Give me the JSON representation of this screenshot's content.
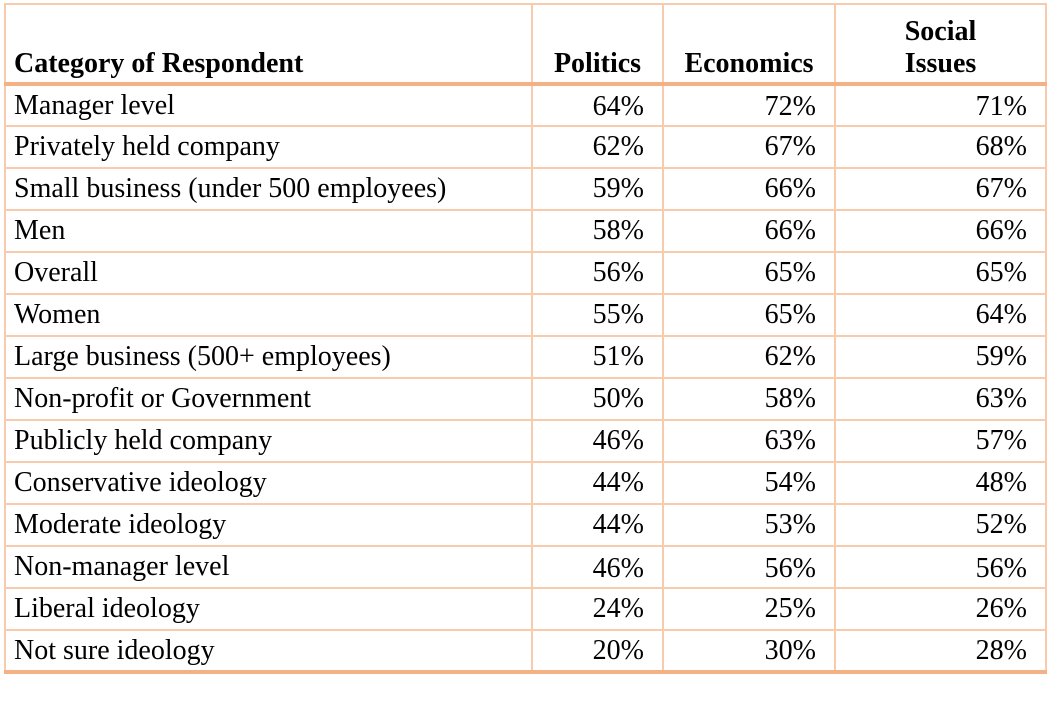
{
  "chart_data": {
    "type": "table",
    "header": {
      "category": "Category of Respondent",
      "politics": "Politics",
      "economics": "Economics",
      "social_issues": "Social\nIssues"
    },
    "rows": [
      {
        "category": "Manager level",
        "politics": "64%",
        "economics": "72%",
        "social_issues": "71%"
      },
      {
        "category": "Privately held company",
        "politics": "62%",
        "economics": "67%",
        "social_issues": "68%"
      },
      {
        "category": "Small business (under 500 employees)",
        "politics": "59%",
        "economics": "66%",
        "social_issues": "67%"
      },
      {
        "category": "Men",
        "politics": "58%",
        "economics": "66%",
        "social_issues": "66%"
      },
      {
        "category": "Overall",
        "politics": "56%",
        "economics": "65%",
        "social_issues": "65%"
      },
      {
        "category": "Women",
        "politics": "55%",
        "economics": "65%",
        "social_issues": "64%"
      },
      {
        "category": "Large business (500+ employees)",
        "politics": "51%",
        "economics": "62%",
        "social_issues": "59%"
      },
      {
        "category": "Non-profit or Government",
        "politics": "50%",
        "economics": "58%",
        "social_issues": "63%"
      },
      {
        "category": "Publicly held company",
        "politics": "46%",
        "economics": "63%",
        "social_issues": "57%"
      },
      {
        "category": "Conservative ideology",
        "politics": "44%",
        "economics": "54%",
        "social_issues": "48%"
      },
      {
        "category": "Moderate ideology",
        "politics": "44%",
        "economics": "53%",
        "social_issues": "52%"
      },
      {
        "category": "Non-manager level",
        "politics": "46%",
        "economics": "56%",
        "social_issues": "56%"
      },
      {
        "category": "Liberal ideology",
        "politics": "24%",
        "economics": "25%",
        "social_issues": "26%"
      },
      {
        "category": "Not sure ideology",
        "politics": "20%",
        "economics": "30%",
        "social_issues": "28%"
      }
    ]
  },
  "colors": {
    "thick_border": "#F4B183",
    "thin_border": "#F7CBAC",
    "text": "#000000",
    "background": "#FFFFFF"
  }
}
